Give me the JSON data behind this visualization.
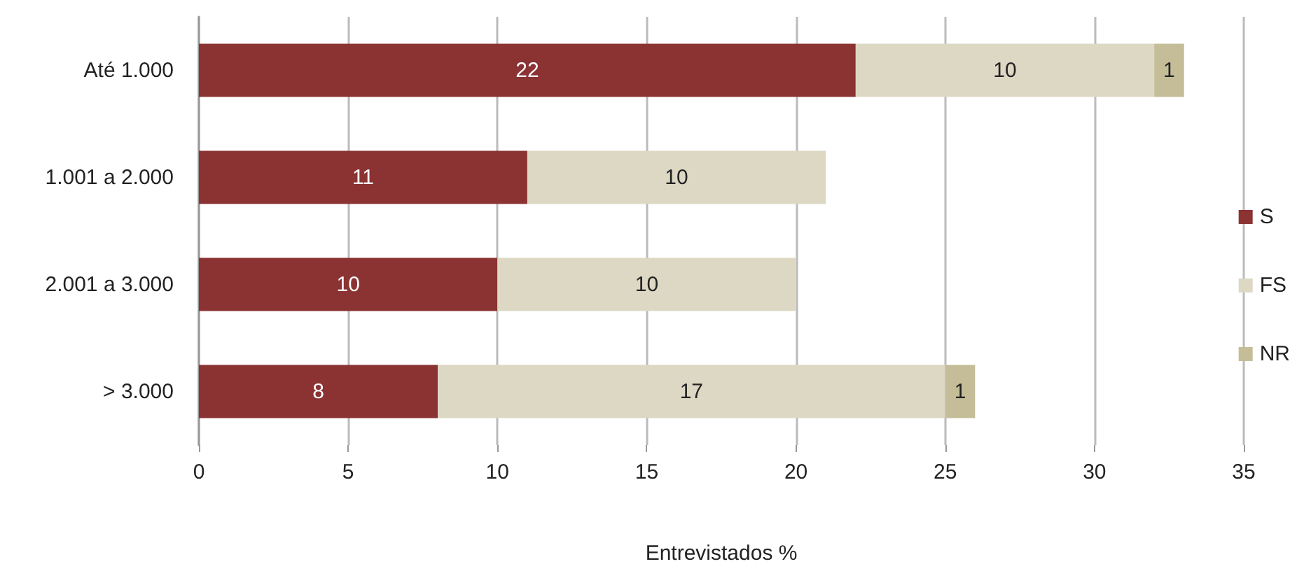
{
  "chart_data": {
    "type": "bar",
    "orientation": "horizontal",
    "stacked": true,
    "categories": [
      "Até 1.000",
      "1.001 a 2.000",
      "2.001 a 3.000",
      "> 3.000"
    ],
    "series": [
      {
        "name": "S",
        "color": "#8b3232",
        "values": [
          22,
          11,
          10,
          8
        ]
      },
      {
        "name": "FS",
        "color": "#ddd8c4",
        "values": [
          10,
          10,
          10,
          17
        ]
      },
      {
        "name": "NR",
        "color": "#c4bd97",
        "values": [
          1,
          null,
          null,
          1
        ]
      }
    ],
    "xlabel": "Entrevistados %",
    "xlim": [
      0,
      35
    ],
    "xticks": [
      0,
      5,
      10,
      15,
      20,
      25,
      30,
      35
    ],
    "grid": "x",
    "legend": "right",
    "data_labels": true
  }
}
